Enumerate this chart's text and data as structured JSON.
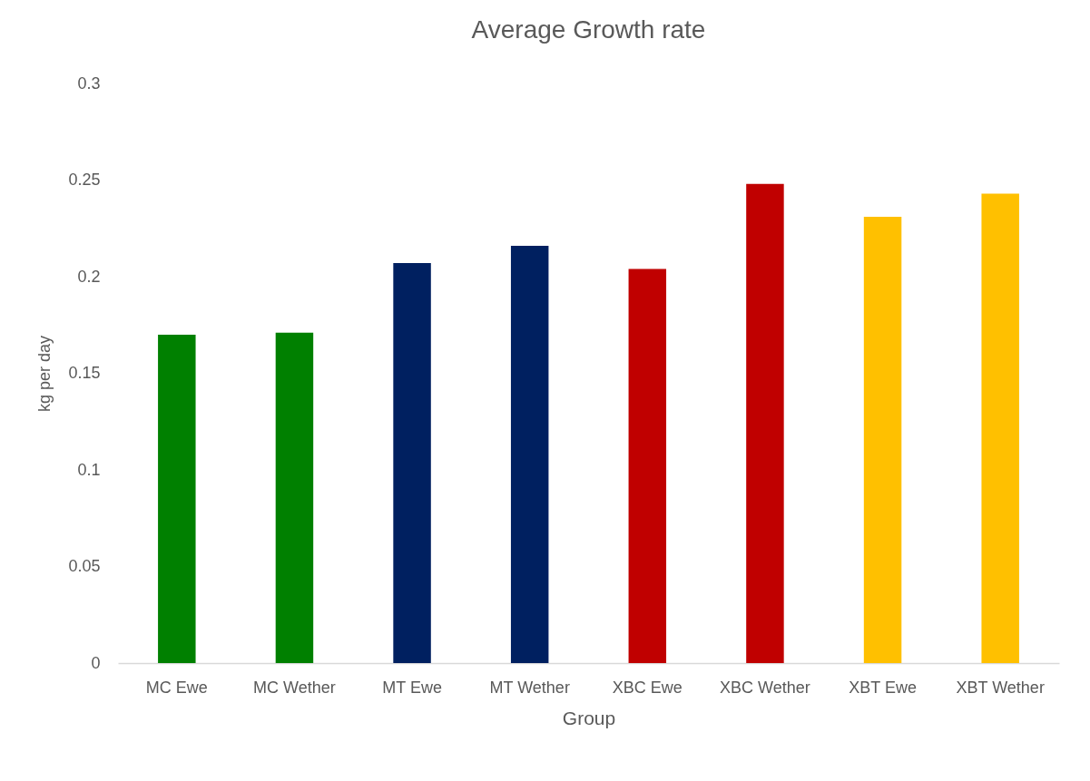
{
  "chart_data": {
    "type": "bar",
    "title": "Average Growth rate",
    "xlabel": "Group",
    "ylabel": "kg per day",
    "categories": [
      "MC Ewe",
      "MC Wether",
      "MT Ewe",
      "MT Wether",
      "XBC Ewe",
      "XBC Wether",
      "XBT Ewe",
      "XBT Wether"
    ],
    "values": [
      0.17,
      0.171,
      0.207,
      0.216,
      0.204,
      0.248,
      0.231,
      0.243
    ],
    "colors": [
      "#008000",
      "#008000",
      "#002060",
      "#002060",
      "#c00000",
      "#c00000",
      "#ffc000",
      "#ffc000"
    ],
    "ylim": [
      0,
      0.3
    ],
    "yticks": [
      0,
      0.05,
      0.1,
      0.15,
      0.2,
      0.25,
      0.3
    ],
    "grid": false,
    "legend": false
  }
}
